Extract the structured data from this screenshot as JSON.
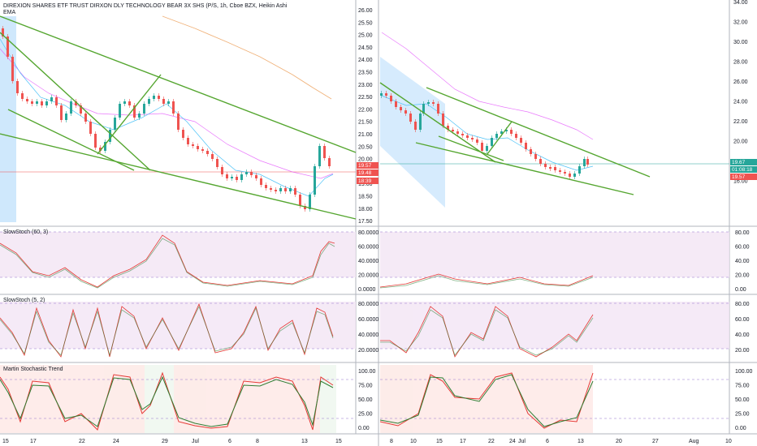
{
  "chart_title": "DIREXION SHARES ETF TRUST DIRXON DLY TECHNOLOGY BEAR 3X SHS (P/S, 1h, Cboe BZX, Heikin Ashi",
  "ema_label": "EMA",
  "colors": {
    "up": "#26a69a",
    "down": "#ef5350",
    "trend": "#4caf50",
    "ema_slow": "#f0b27a",
    "ema_fast": "#e040fb",
    "ema_short": "#4fc3f7",
    "stoch_k": "#e53935",
    "stoch_d": "#2e7d32",
    "band": "#7b1fa2"
  },
  "left_price_axis": {
    "ticks": [
      "26.00",
      "25.50",
      "25.00",
      "24.50",
      "24.00",
      "23.50",
      "23.00",
      "22.50",
      "22.00",
      "21.50",
      "21.00",
      "20.50",
      "20.00",
      "19.50",
      "19.00",
      "18.50",
      "18.00",
      "17.50"
    ]
  },
  "left_price_tags": [
    "19.57",
    "19.48",
    "18:39"
  ],
  "right_price_axis": {
    "ticks": [
      "34.00",
      "32.00",
      "30.00",
      "28.00",
      "26.00",
      "24.00",
      "22.00",
      "20.00",
      "18.00",
      "16.00"
    ]
  },
  "right_price_tags": [
    "19.67",
    "01:08:18",
    "19.57"
  ],
  "left_dates": [
    "15",
    "17",
    "22",
    "24",
    "29",
    "Jul",
    "6",
    "8",
    "13",
    "15"
  ],
  "right_dates": [
    "8",
    "10",
    "15",
    "17",
    "22",
    "24",
    "Jul",
    "6",
    "13",
    "20",
    "27",
    "Aug",
    "10"
  ],
  "panels": [
    {
      "name": "SlowStoch (60, 3)",
      "ticks": [
        "80.0000",
        "60.0000",
        "40.0000",
        "20.0000",
        "0.0000"
      ],
      "right_ticks": [
        "80.00",
        "60.00",
        "40.00",
        "20.00",
        "0.00"
      ]
    },
    {
      "name": "SlowStoch (5, 2)",
      "ticks": [
        "80.0000",
        "60.0000",
        "40.0000",
        "20.0000"
      ],
      "right_ticks": [
        "80.00",
        "60.00",
        "40.00",
        "20.00"
      ]
    },
    {
      "name": "Martin Stochastic Trend",
      "ticks": [
        "100.00",
        "75.00",
        "50.00",
        "25.00",
        "0.00"
      ],
      "right_ticks": [
        "100.00",
        "75.00",
        "50.00",
        "25.00",
        "0.00"
      ]
    }
  ]
}
